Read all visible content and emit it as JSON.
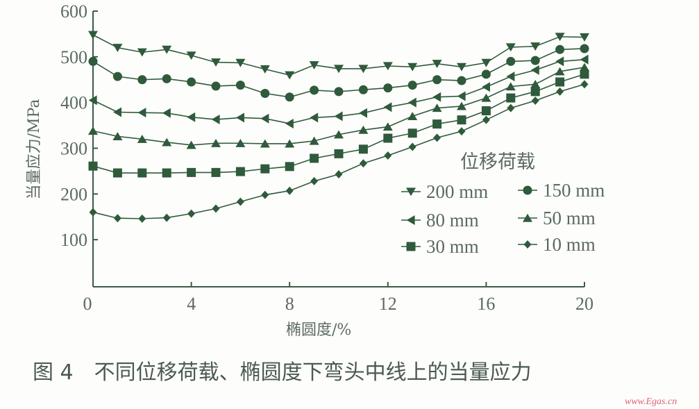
{
  "chart_data": {
    "type": "line",
    "title": "",
    "xlabel": "椭圆度/%",
    "ylabel": "当量应力/MPa",
    "xlim": [
      0,
      20
    ],
    "ylim": [
      0,
      600
    ],
    "xticks": [
      "0",
      "4",
      "8",
      "12",
      "16",
      "20"
    ],
    "yticks": [
      "100",
      "200",
      "300",
      "400",
      "500",
      "600"
    ],
    "grid": false,
    "legend_title": "位移荷载",
    "legend_placement": "right",
    "x": [
      0,
      1,
      2,
      3,
      4,
      5,
      6,
      7,
      8,
      9,
      10,
      11,
      12,
      13,
      14,
      15,
      16,
      17,
      18,
      19,
      20
    ],
    "series": [
      {
        "name": "200 mm",
        "marker": "triangle-down",
        "values": [
          548,
          520,
          510,
          516,
          503,
          488,
          487,
          473,
          460,
          482,
          474,
          474,
          480,
          478,
          485,
          478,
          487,
          521,
          523,
          544,
          543
        ]
      },
      {
        "name": "150 mm",
        "marker": "circle",
        "values": [
          490,
          457,
          450,
          452,
          445,
          436,
          438,
          420,
          412,
          427,
          424,
          428,
          432,
          438,
          450,
          448,
          462,
          490,
          492,
          516,
          518
        ]
      },
      {
        "name": "80 mm",
        "marker": "triangle-left",
        "values": [
          405,
          379,
          378,
          377,
          368,
          363,
          367,
          365,
          354,
          367,
          370,
          377,
          390,
          400,
          412,
          414,
          434,
          457,
          471,
          490,
          494
        ]
      },
      {
        "name": "50 mm",
        "marker": "triangle-up",
        "values": [
          338,
          326,
          320,
          313,
          307,
          311,
          311,
          310,
          310,
          316,
          330,
          340,
          347,
          370,
          388,
          392,
          410,
          435,
          440,
          468,
          477
        ]
      },
      {
        "name": "30 mm",
        "marker": "square",
        "values": [
          261,
          246,
          246,
          246,
          247,
          247,
          249,
          255,
          260,
          278,
          288,
          298,
          322,
          333,
          353,
          362,
          382,
          410,
          424,
          445,
          462
        ]
      },
      {
        "name": "10 mm",
        "marker": "diamond",
        "values": [
          160,
          147,
          146,
          148,
          157,
          168,
          183,
          198,
          207,
          228,
          243,
          267,
          284,
          303,
          323,
          337,
          362,
          388,
          404,
          424,
          440
        ]
      }
    ],
    "colors": {
      "series": "#2f5a3c",
      "axis": "#3c5a46",
      "text": "#5a6a60"
    }
  },
  "caption": "图 4　不同位移荷载、椭圆度下弯头中线上的当量应力",
  "watermark": "www.Egas.cn"
}
